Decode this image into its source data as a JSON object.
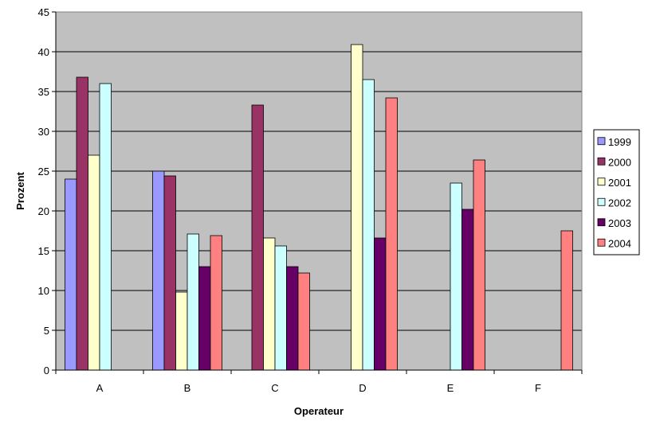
{
  "chart_data": {
    "type": "bar",
    "title": "",
    "xlabel": "Operateur",
    "ylabel": "Prozent",
    "ylim": [
      0,
      45
    ],
    "yticks": [
      0,
      5,
      10,
      15,
      20,
      25,
      30,
      35,
      40,
      45
    ],
    "grid": true,
    "legend_position": "right",
    "plot_background": "#c0c0c0",
    "categories": [
      "A",
      "B",
      "C",
      "D",
      "E",
      "F"
    ],
    "series": [
      {
        "name": "1999",
        "color": "#9999ff",
        "values": [
          24,
          25,
          null,
          null,
          null,
          null
        ]
      },
      {
        "name": "2000",
        "color": "#993366",
        "values": [
          36.8,
          24.4,
          33.3,
          null,
          null,
          null
        ]
      },
      {
        "name": "2001",
        "color": "#ffffcc",
        "values": [
          27,
          9.8,
          16.6,
          40.9,
          null,
          null
        ]
      },
      {
        "name": "2002",
        "color": "#ccffff",
        "values": [
          36,
          17.1,
          15.6,
          36.5,
          23.5,
          null
        ]
      },
      {
        "name": "2003",
        "color": "#660066",
        "values": [
          null,
          13,
          13,
          16.6,
          20.2,
          null
        ]
      },
      {
        "name": "2004",
        "color": "#ff8080",
        "values": [
          null,
          16.9,
          12.2,
          34.2,
          26.4,
          17.5
        ]
      }
    ]
  }
}
